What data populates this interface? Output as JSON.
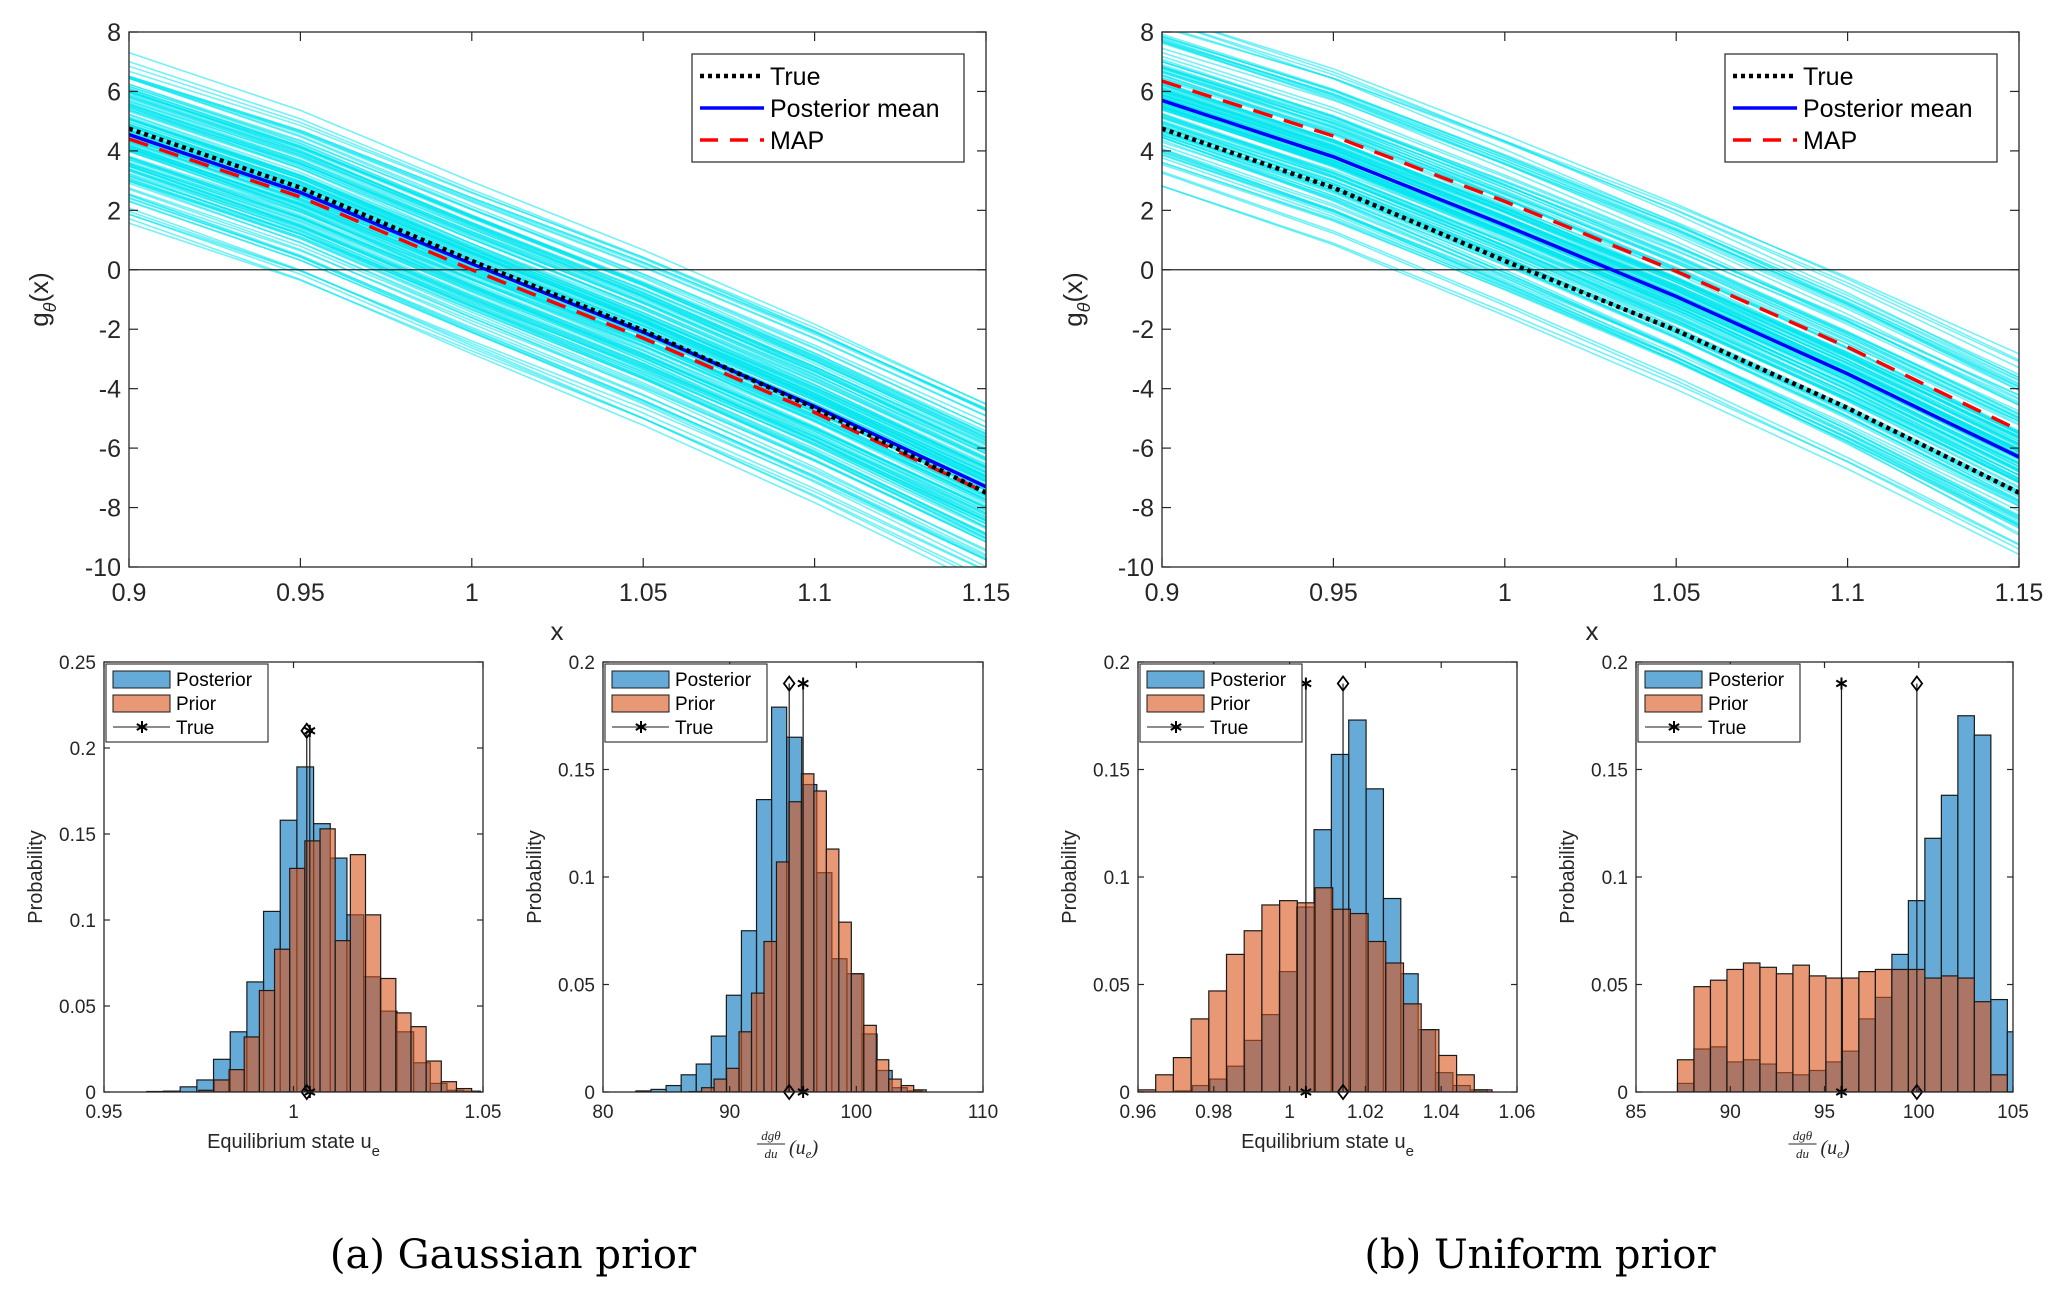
{
  "captions": {
    "a": "(a) Gaussian prior",
    "b": "(b) Uniform prior"
  },
  "chart_data": [
    {
      "id": "a-top",
      "type": "line",
      "xlabel": "x",
      "ylabel": "g_θ(x)",
      "xlim": [
        0.9,
        1.15
      ],
      "ylim": [
        -10,
        8
      ],
      "xticks": [
        "0.9",
        "0.95",
        "1",
        "1.05",
        "1.1",
        "1.15"
      ],
      "xtick_values": [
        0.9,
        0.95,
        1.0,
        1.05,
        1.1,
        1.15
      ],
      "yticks": [
        "-10",
        "-8",
        "-6",
        "-4",
        "-2",
        "0",
        "2",
        "4",
        "6",
        "8"
      ],
      "ytick_values": [
        -10,
        -8,
        -6,
        -4,
        -2,
        0,
        2,
        4,
        6,
        8
      ],
      "reference_line_y": 0,
      "legend_position": "top-right",
      "x": [
        0.9,
        0.95,
        1.0,
        1.05,
        1.1,
        1.15
      ],
      "series": [
        {
          "name": "True",
          "style": "dotted",
          "color": "#000000",
          "values": [
            4.75,
            2.76,
            0.3,
            -2.04,
            -4.65,
            -7.5
          ]
        },
        {
          "name": "Posterior mean",
          "style": "solid",
          "color": "#0000ff",
          "values": [
            4.55,
            2.6,
            0.2,
            -2.1,
            -4.6,
            -7.3
          ]
        },
        {
          "name": "MAP",
          "style": "dashed",
          "color": "#ff0000",
          "values": [
            4.4,
            2.45,
            0.0,
            -2.3,
            -4.8,
            -7.5
          ]
        }
      ],
      "samples": {
        "color": "#00e5ee",
        "count": 160,
        "center_at_start": 4.55,
        "center_at_end": -7.3,
        "spread_start": 1.3,
        "spread_end": 1.4,
        "max_start": 7.9,
        "min_start": 1.8,
        "max_end": -3.0,
        "min_end": -10.0
      }
    },
    {
      "id": "b-top",
      "type": "line",
      "xlabel": "x",
      "ylabel": "g_θ(x)",
      "xlim": [
        0.9,
        1.15
      ],
      "ylim": [
        -10,
        8
      ],
      "xticks": [
        "0.9",
        "0.95",
        "1",
        "1.05",
        "1.1",
        "1.15"
      ],
      "xtick_values": [
        0.9,
        0.95,
        1.0,
        1.05,
        1.1,
        1.15
      ],
      "yticks": [
        "-10",
        "-8",
        "-6",
        "-4",
        "-2",
        "0",
        "2",
        "4",
        "6",
        "8"
      ],
      "ytick_values": [
        -10,
        -8,
        -6,
        -4,
        -2,
        0,
        2,
        4,
        6,
        8
      ],
      "reference_line_y": 0,
      "legend_position": "top-right",
      "x": [
        0.9,
        0.95,
        1.0,
        1.05,
        1.1,
        1.15
      ],
      "series": [
        {
          "name": "True",
          "style": "dotted",
          "color": "#000000",
          "values": [
            4.75,
            2.76,
            0.3,
            -2.04,
            -4.65,
            -7.5
          ]
        },
        {
          "name": "Posterior mean",
          "style": "solid",
          "color": "#0000ff",
          "values": [
            5.7,
            3.8,
            1.5,
            -0.9,
            -3.5,
            -6.3
          ]
        },
        {
          "name": "MAP",
          "style": "dashed",
          "color": "#ff0000",
          "values": [
            6.35,
            4.5,
            2.3,
            -0.05,
            -2.6,
            -5.4
          ]
        }
      ],
      "samples": {
        "color": "#00e5ee",
        "count": 160,
        "center_at_start": 5.7,
        "center_at_end": -6.3,
        "spread_start": 1.2,
        "spread_end": 1.4,
        "max_start": 8.0,
        "min_start": 1.9,
        "max_end": -2.9,
        "min_end": -10.0
      }
    },
    {
      "id": "a-hist-ue",
      "type": "bar",
      "xlabel": "Equilibrium state u_e",
      "ylabel": "Probability",
      "xlim": [
        0.95,
        1.05
      ],
      "ylim": [
        0,
        0.25
      ],
      "xticks": [
        "0.95",
        "1",
        "1.05"
      ],
      "xtick_values": [
        0.95,
        1.0,
        1.05
      ],
      "yticks": [
        "0",
        "0.05",
        "0.1",
        "0.15",
        "0.2",
        "0.25"
      ],
      "ytick_values": [
        0,
        0.05,
        0.1,
        0.15,
        0.2,
        0.25
      ],
      "legend_position": "top-left",
      "legend": [
        "Posterior",
        "Prior",
        "True"
      ],
      "series": [
        {
          "name": "Posterior",
          "color": "#0072bd",
          "bin_start": 0.9613,
          "bin_width": 0.0044,
          "values": [
            0.0003,
            0.0005,
            0.003,
            0.007,
            0.019,
            0.035,
            0.064,
            0.105,
            0.158,
            0.189,
            0.156,
            0.136,
            0.103,
            0.067,
            0.047,
            0.035,
            0.017,
            0.005,
            0.001,
            0.0005
          ]
        },
        {
          "name": "Prior",
          "color": "#d95319",
          "bin_start": 0.975,
          "bin_width": 0.004,
          "values": [
            0.001,
            0.007,
            0.013,
            0.032,
            0.059,
            0.083,
            0.13,
            0.146,
            0.153,
            0.088,
            0.138,
            0.103,
            0.066,
            0.046,
            0.038,
            0.018,
            0.006,
            0.002
          ]
        }
      ],
      "markers": [
        {
          "name": "MAP",
          "symbol": "diamond",
          "x": 1.0035,
          "y_top": 0.21
        },
        {
          "name": "True",
          "symbol": "asterisk",
          "x": 1.0043,
          "y_top": 0.21
        }
      ]
    },
    {
      "id": "a-hist-deriv",
      "type": "bar",
      "xlabel": "dg_θ/du (u_e)",
      "ylabel": "Probability",
      "xlim": [
        80,
        110
      ],
      "ylim": [
        0,
        0.2
      ],
      "xticks": [
        "80",
        "90",
        "100",
        "110"
      ],
      "xtick_values": [
        80,
        90,
        100,
        110
      ],
      "yticks": [
        "0",
        "0.05",
        "0.1",
        "0.15",
        "0.2"
      ],
      "ytick_values": [
        0,
        0.05,
        0.1,
        0.15,
        0.2
      ],
      "legend_position": "top-left",
      "legend": [
        "Posterior",
        "Prior",
        "True"
      ],
      "series": [
        {
          "name": "Posterior",
          "color": "#0072bd",
          "bin_start": 82.6,
          "bin_width": 1.19,
          "values": [
            0.0005,
            0.0012,
            0.003,
            0.008,
            0.013,
            0.026,
            0.045,
            0.075,
            0.136,
            0.179,
            0.165,
            0.143,
            0.102,
            0.062,
            0.055,
            0.027,
            0.01,
            0.002,
            0.0005
          ]
        },
        {
          "name": "Prior",
          "color": "#d95319",
          "bin_start": 86.8,
          "bin_width": 0.985,
          "values": [
            0.0002,
            0.002,
            0.006,
            0.011,
            0.028,
            0.046,
            0.07,
            0.107,
            0.135,
            0.148,
            0.14,
            0.113,
            0.079,
            0.055,
            0.031,
            0.015,
            0.006,
            0.003,
            0.001
          ]
        }
      ],
      "markers": [
        {
          "name": "MAP",
          "symbol": "diamond",
          "x": 94.7,
          "y_top": 0.19
        },
        {
          "name": "True",
          "symbol": "asterisk",
          "x": 95.8,
          "y_top": 0.19
        }
      ]
    },
    {
      "id": "b-hist-ue",
      "type": "bar",
      "xlabel": "Equilibrium state u_e",
      "ylabel": "Probability",
      "xlim": [
        0.96,
        1.06
      ],
      "ylim": [
        0,
        0.2
      ],
      "xticks": [
        "0.96",
        "0.98",
        "1",
        "1.02",
        "1.04",
        "1.06"
      ],
      "xtick_values": [
        0.96,
        0.98,
        1.0,
        1.02,
        1.04,
        1.06
      ],
      "yticks": [
        "0",
        "0.05",
        "0.1",
        "0.15",
        "0.2"
      ],
      "ytick_values": [
        0,
        0.05,
        0.1,
        0.15,
        0.2
      ],
      "legend_position": "top-left",
      "legend": [
        "Posterior",
        "Prior",
        "True"
      ],
      "series": [
        {
          "name": "Posterior",
          "color": "#0072bd",
          "bin_start": 0.9698,
          "bin_width": 0.00458,
          "values": [
            0.0005,
            0.003,
            0.006,
            0.012,
            0.024,
            0.036,
            0.056,
            0.086,
            0.122,
            0.157,
            0.173,
            0.141,
            0.09,
            0.055,
            0.029,
            0.009,
            0.003,
            0.001
          ]
        },
        {
          "name": "Prior",
          "color": "#d95319",
          "bin_start": 0.96,
          "bin_width": 0.00467,
          "values": [
            0.001,
            0.008,
            0.016,
            0.034,
            0.047,
            0.064,
            0.075,
            0.087,
            0.089,
            0.088,
            0.095,
            0.085,
            0.083,
            0.07,
            0.06,
            0.041,
            0.029,
            0.017,
            0.008,
            0.001
          ]
        }
      ],
      "markers": [
        {
          "name": "True",
          "symbol": "asterisk",
          "x": 1.0043,
          "y_top": 0.19
        },
        {
          "name": "MAP",
          "symbol": "diamond",
          "x": 1.0141,
          "y_top": 0.19
        }
      ]
    },
    {
      "id": "b-hist-deriv",
      "type": "bar",
      "xlabel": "dg_θ/du (u_e)",
      "ylabel": "Probability",
      "xlim": [
        85,
        105
      ],
      "ylim": [
        0,
        0.2
      ],
      "xticks": [
        "85",
        "90",
        "95",
        "100",
        "105"
      ],
      "xtick_values": [
        85,
        90,
        95,
        100,
        105
      ],
      "yticks": [
        "0",
        "0.05",
        "0.1",
        "0.15",
        "0.2"
      ],
      "ytick_values": [
        0,
        0.05,
        0.1,
        0.15,
        0.2
      ],
      "legend_position": "top-left",
      "legend": [
        "Posterior",
        "Prior",
        "True"
      ],
      "series": [
        {
          "name": "Posterior",
          "color": "#0072bd",
          "bin_start": 87.2,
          "bin_width": 0.875,
          "values": [
            0.004,
            0.02,
            0.021,
            0.014,
            0.015,
            0.013,
            0.009,
            0.008,
            0.01,
            0.014,
            0.019,
            0.034,
            0.044,
            0.064,
            0.089,
            0.118,
            0.138,
            0.175,
            0.166,
            0.043,
            0.028
          ]
        },
        {
          "name": "Prior",
          "color": "#d95319",
          "bin_start": 87.2,
          "bin_width": 0.875,
          "values": [
            0.015,
            0.049,
            0.052,
            0.057,
            0.06,
            0.058,
            0.055,
            0.059,
            0.054,
            0.053,
            0.053,
            0.056,
            0.057,
            0.057,
            0.057,
            0.053,
            0.054,
            0.053,
            0.042,
            0.008
          ]
        }
      ],
      "markers": [
        {
          "name": "True",
          "symbol": "asterisk",
          "x": 95.9,
          "y_top": 0.19
        },
        {
          "name": "MAP",
          "symbol": "diamond",
          "x": 99.9,
          "y_top": 0.19
        }
      ]
    }
  ]
}
